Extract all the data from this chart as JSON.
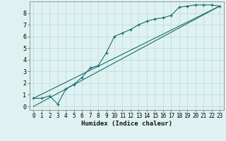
{
  "xlabel": "Humidex (Indice chaleur)",
  "ylabel": "",
  "bg_color": "#dff2f2",
  "grid_color": "#c0dcdc",
  "line_color": "#1a6b6b",
  "line1_x": [
    0,
    1,
    2,
    3,
    4,
    5,
    6,
    7,
    8,
    9,
    10,
    11,
    12,
    13,
    14,
    15,
    16,
    17,
    18,
    19,
    20,
    21,
    22,
    23
  ],
  "line1_y": [
    0.7,
    0.7,
    0.9,
    0.2,
    1.5,
    1.9,
    2.5,
    3.3,
    3.5,
    4.6,
    6.0,
    6.3,
    6.6,
    7.0,
    7.3,
    7.5,
    7.6,
    7.8,
    8.5,
    8.6,
    8.7,
    8.7,
    8.7,
    8.6
  ],
  "line2_x": [
    0,
    23
  ],
  "line2_y": [
    0.0,
    8.6
  ],
  "line3_x": [
    0,
    23
  ],
  "line3_y": [
    0.7,
    8.6
  ],
  "xlim": [
    -0.5,
    23.5
  ],
  "ylim": [
    -0.3,
    9.0
  ],
  "xticks": [
    0,
    1,
    2,
    3,
    4,
    5,
    6,
    7,
    8,
    9,
    10,
    11,
    12,
    13,
    14,
    15,
    16,
    17,
    18,
    19,
    20,
    21,
    22,
    23
  ],
  "yticks": [
    0,
    1,
    2,
    3,
    4,
    5,
    6,
    7,
    8
  ]
}
